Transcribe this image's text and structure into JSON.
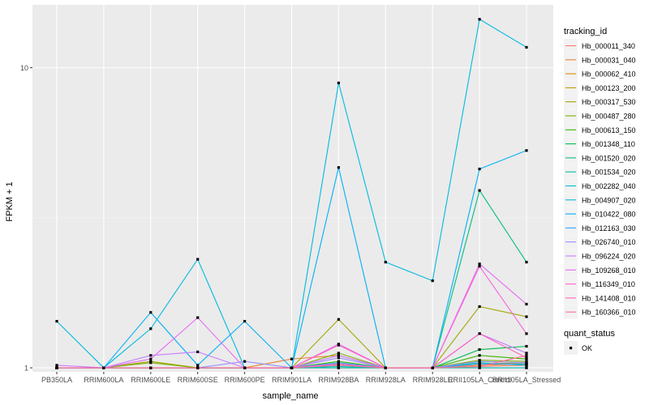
{
  "chart_data": {
    "type": "line",
    "xlabel": "sample_name",
    "ylabel": "FPKM + 1",
    "y_scale": "log10",
    "ylim": [
      0.97,
      16.2
    ],
    "y_ticks": [
      1,
      10
    ],
    "y_tick_labels": [
      "1",
      "10"
    ],
    "categories": [
      "PB350LA",
      "RRIM600LA",
      "RRIM600LE",
      "RRIM600SE",
      "RRIM600PE",
      "RRIM901LA",
      "RRIM928BA",
      "RRIM928LA",
      "RRIM928LE",
      "RRII105LA_Control",
      "RRII105LA_Stressed"
    ],
    "x_tick_labels": [
      "PB350LA",
      "RRIM600LA",
      "RRIM600LE",
      "RRIM600SE",
      "RRIM600PE",
      "RRIM901LA",
      "RRIM928BA",
      "RRIM928LA",
      "RRIM928LE",
      "RRII105LA_Control",
      "RRII105LA_Stressed"
    ],
    "grid": true,
    "legend_position": "right",
    "legend": {
      "title": "tracking_id",
      "status_title": "quant_status",
      "status_entries": [
        {
          "label": "OK",
          "color": "#000000"
        }
      ]
    },
    "series": [
      {
        "name": "Hb_000011_340",
        "color": "#F8766D",
        "values": [
          1.0,
          1.0,
          1.0,
          1.0,
          1.0,
          1.0,
          1.0,
          1.0,
          1.0,
          1.01,
          1.02
        ]
      },
      {
        "name": "Hb_000031_040",
        "color": "#EA8331",
        "values": [
          1.0,
          1.0,
          1.0,
          1.0,
          1.0,
          1.07,
          1.1,
          1.0,
          1.0,
          1.02,
          1.03
        ]
      },
      {
        "name": "Hb_000062_410",
        "color": "#D89000",
        "values": [
          1.0,
          1.0,
          1.0,
          1.0,
          1.0,
          1.0,
          1.0,
          1.0,
          1.0,
          1.0,
          1.0
        ]
      },
      {
        "name": "Hb_000123_200",
        "color": "#C09B00",
        "values": [
          1.0,
          1.0,
          1.0,
          1.0,
          1.0,
          1.0,
          1.03,
          1.0,
          1.0,
          1.03,
          1.04
        ]
      },
      {
        "name": "Hb_000317_530",
        "color": "#A3A500",
        "values": [
          1.0,
          1.0,
          1.05,
          1.0,
          1.0,
          1.0,
          1.45,
          1.0,
          1.0,
          1.6,
          1.48
        ]
      },
      {
        "name": "Hb_000487_280",
        "color": "#7CAE00",
        "values": [
          1.0,
          1.0,
          1.04,
          1.0,
          1.0,
          1.0,
          1.12,
          1.0,
          1.0,
          1.06,
          1.05
        ]
      },
      {
        "name": "Hb_000613_150",
        "color": "#39B600",
        "values": [
          1.0,
          1.0,
          1.0,
          1.0,
          1.0,
          1.0,
          1.05,
          1.0,
          1.0,
          1.1,
          1.07
        ]
      },
      {
        "name": "Hb_001348_110",
        "color": "#00BB4E",
        "values": [
          1.0,
          1.0,
          1.0,
          1.0,
          1.0,
          1.0,
          1.03,
          1.0,
          1.0,
          1.15,
          1.18
        ]
      },
      {
        "name": "Hb_001520_020",
        "color": "#00BF7D",
        "values": [
          1.0,
          1.0,
          1.0,
          1.0,
          1.0,
          1.0,
          1.02,
          1.0,
          1.0,
          3.9,
          2.25
        ]
      },
      {
        "name": "Hb_001534_020",
        "color": "#00C1A3",
        "values": [
          1.0,
          1.0,
          1.0,
          1.0,
          1.0,
          1.0,
          1.01,
          1.0,
          1.0,
          1.04,
          1.02
        ]
      },
      {
        "name": "Hb_002282_040",
        "color": "#00BFC4",
        "values": [
          1.0,
          1.0,
          1.0,
          1.0,
          1.0,
          1.0,
          1.0,
          1.0,
          1.0,
          1.0,
          1.0
        ]
      },
      {
        "name": "Hb_004907_020",
        "color": "#00BAE0",
        "values": [
          1.43,
          1.0,
          1.35,
          2.3,
          1.0,
          1.0,
          8.9,
          2.25,
          1.95,
          14.5,
          11.7
        ]
      },
      {
        "name": "Hb_010422_080",
        "color": "#00B0F6",
        "values": [
          1.0,
          1.0,
          1.53,
          1.02,
          1.43,
          1.0,
          4.65,
          1.0,
          1.0,
          4.6,
          5.3
        ]
      },
      {
        "name": "Hb_012163_030",
        "color": "#35A2FF",
        "values": [
          1.0,
          1.0,
          1.0,
          1.0,
          1.0,
          1.0,
          1.04,
          1.0,
          1.0,
          1.03,
          1.03
        ]
      },
      {
        "name": "Hb_026740_010",
        "color": "#9590FF",
        "values": [
          1.0,
          1.0,
          1.0,
          1.0,
          1.05,
          1.0,
          1.08,
          1.0,
          1.0,
          1.05,
          1.04
        ]
      },
      {
        "name": "Hb_096224_020",
        "color": "#C77CFF",
        "values": [
          1.02,
          1.0,
          1.1,
          1.13,
          1.0,
          1.0,
          1.1,
          1.0,
          1.0,
          1.3,
          1.12
        ]
      },
      {
        "name": "Hb_109268_010",
        "color": "#E76BF3",
        "values": [
          1.0,
          1.0,
          1.07,
          1.47,
          1.0,
          1.0,
          1.2,
          1.0,
          1.0,
          2.22,
          1.63
        ]
      },
      {
        "name": "Hb_116349_010",
        "color": "#FA62DB",
        "values": [
          1.0,
          1.0,
          1.0,
          1.0,
          1.0,
          1.0,
          1.03,
          1.0,
          1.0,
          2.18,
          1.3
        ]
      },
      {
        "name": "Hb_141408_010",
        "color": "#FF62BC",
        "values": [
          1.0,
          1.0,
          1.0,
          1.0,
          1.0,
          1.0,
          1.19,
          1.0,
          1.0,
          1.3,
          1.08
        ]
      },
      {
        "name": "Hb_160366_010",
        "color": "#FF6C91",
        "values": [
          1.0,
          1.0,
          1.0,
          1.0,
          1.0,
          1.0,
          1.02,
          1.0,
          1.0,
          1.01,
          1.1
        ]
      }
    ]
  }
}
